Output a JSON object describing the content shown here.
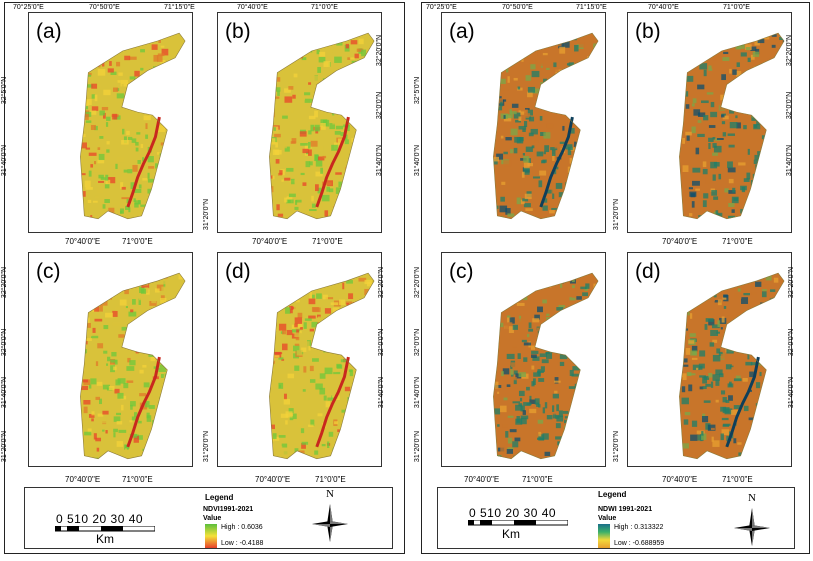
{
  "figures": [
    {
      "id": "ndvi",
      "panels": [
        {
          "label": "(a)",
          "top_ticks": [
            "70°25'0\"E",
            "70°50'0\"E",
            "71°15'0\"E"
          ],
          "side_ticks": [
            "32°5'0\"N",
            "31°40'0\"N"
          ],
          "bottom_ticks": [],
          "river": true
        },
        {
          "label": "(b)",
          "top_ticks": [
            "70°40'0\"E",
            "71°0'0\"E"
          ],
          "side_ticks": [
            "32°20'0\"N",
            "32°0'0\"N",
            "31°40'0\"N",
            "31°20'0\"N"
          ],
          "bottom_ticks": [
            "70°40'0\"E",
            "71°0'0\"E"
          ],
          "river": true
        },
        {
          "label": "(c)",
          "top_ticks": [
            "70°40'0\"E",
            "71°0'0\"E"
          ],
          "side_ticks": [
            "32°20'0\"N",
            "32°0'0\"N",
            "31°40'0\"N",
            "31°20'0\"N"
          ],
          "bottom_ticks": [
            "70°40'0\"E",
            "71°0'0\"E"
          ],
          "river": true
        },
        {
          "label": "(d)",
          "top_ticks": [],
          "side_ticks": [
            "32°20'0\"N",
            "32°0'0\"N",
            "31°40'0\"N",
            "31°20'0\"N"
          ],
          "bottom_ticks": [
            "70°40'0\"E",
            "71°0'0\"E"
          ],
          "river": true
        }
      ],
      "legend": {
        "scale_numbers": "0 510  20  30  40",
        "scale_unit": "Km",
        "title": "Legend",
        "subtitle": "NDVI1991-2021",
        "value_label": "Value",
        "high": "High : 0.6036",
        "low": "Low : -0.4188",
        "north": "N"
      },
      "colors": {
        "base": "#d9c23a",
        "high": "#6cc83c",
        "low": "#e8452a",
        "mid": "#f3d23a",
        "accent": "#e07a2a"
      }
    },
    {
      "id": "ndwi",
      "panels": [
        {
          "label": "(a)",
          "top_ticks": [
            "70°25'0\"E",
            "70°50'0\"E",
            "71°15'0\"E"
          ],
          "side_ticks": [
            "32°5'0\"N",
            "31°40'0\"N"
          ],
          "bottom_ticks": [],
          "river": true
        },
        {
          "label": "(b)",
          "top_ticks": [
            "70°40'0\"E",
            "71°0'0\"E"
          ],
          "side_ticks": [
            "32°20'0\"N",
            "32°0'0\"N",
            "31°40'0\"N",
            "31°20'0\"N"
          ],
          "bottom_ticks": [
            "70°40'0\"E",
            "71°0'0\"E"
          ],
          "river": false
        },
        {
          "label": "(c)",
          "top_ticks": [],
          "side_ticks": [
            "32°20'0\"N",
            "32°0'0\"N",
            "31°40'0\"N",
            "31°20'0\"N"
          ],
          "bottom_ticks": [
            "70°40'0\"E",
            "71°0'0\"E"
          ],
          "river": false
        },
        {
          "label": "(d)",
          "top_ticks": [],
          "side_ticks": [
            "32°20'0\"N",
            "32°0'0\"N",
            "31°40'0\"N",
            "31°20'0\"N"
          ],
          "bottom_ticks": [
            "70°40'0\"E",
            "71°0'0\"E"
          ],
          "river": true
        }
      ],
      "legend": {
        "scale_numbers": "0 510  20  30  40",
        "scale_unit": "Km",
        "title": "Legend",
        "subtitle": "NDWI 1991-2021",
        "value_label": "Value",
        "high": "High : 0.313322",
        "low": "Low : -0.688959",
        "north": "N"
      },
      "colors": {
        "base": "#c8752a",
        "high": "#1e7f6a",
        "low": "#e8a030",
        "mid": "#7aa84a",
        "accent": "#0e4f6e"
      }
    }
  ]
}
